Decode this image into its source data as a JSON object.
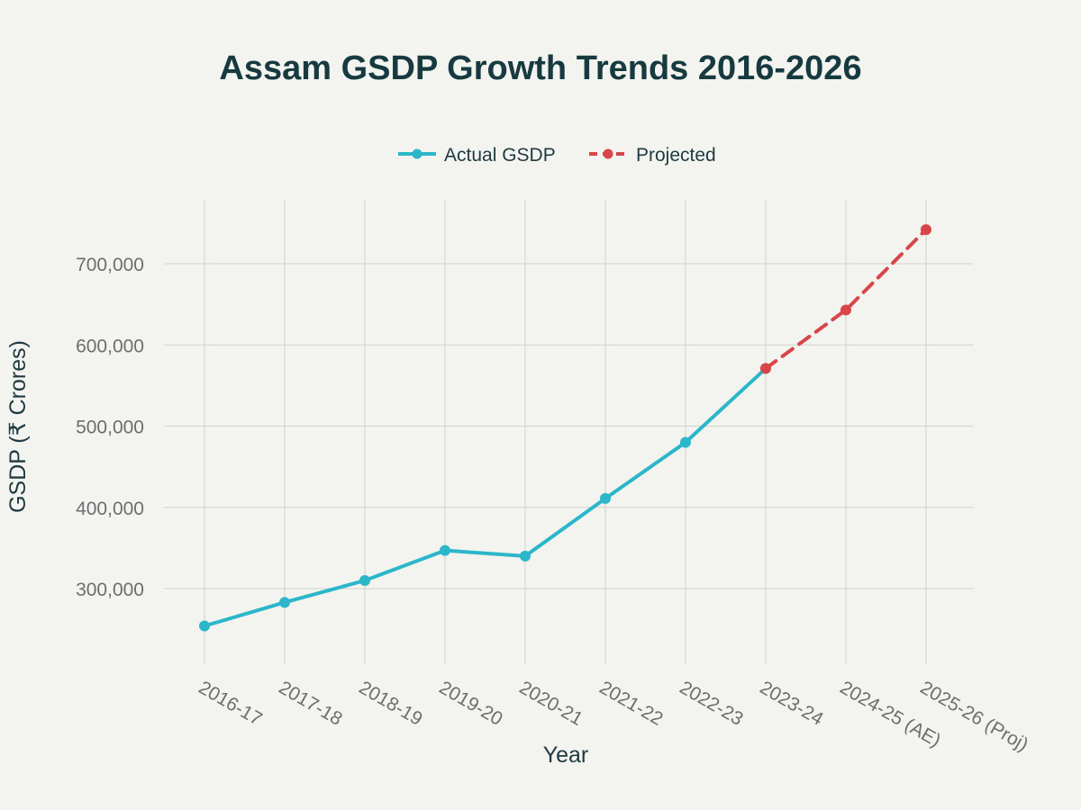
{
  "chart_data": {
    "type": "line",
    "title": "Assam GSDP Growth Trends 2016-2026",
    "xlabel": "Year",
    "ylabel": "GSDP (₹ Crores)",
    "categories": [
      "2016-17",
      "2017-18",
      "2018-19",
      "2019-20",
      "2020-21",
      "2021-22",
      "2022-23",
      "2023-24",
      "2024-25 (AE)",
      "2025-26 (Proj)"
    ],
    "ylim": [
      210000,
      760000
    ],
    "yticks": [
      300000,
      400000,
      500000,
      600000,
      700000
    ],
    "ytick_labels": [
      "300,000",
      "400,000",
      "500,000",
      "600,000",
      "700,000"
    ],
    "grid": true,
    "legend_position": "top-center",
    "series": [
      {
        "name": "Actual GSDP",
        "color": "#2bb7c9",
        "dash": "solid",
        "x": [
          "2016-17",
          "2017-18",
          "2018-19",
          "2019-20",
          "2020-21",
          "2021-22",
          "2022-23",
          "2023-24"
        ],
        "values": [
          254000,
          283000,
          310000,
          347000,
          340000,
          411000,
          480000,
          571000
        ]
      },
      {
        "name": "Projected",
        "color": "#d9464a",
        "dash": "dashed",
        "x": [
          "2023-24",
          "2024-25 (AE)",
          "2025-26 (Proj)"
        ],
        "values": [
          571000,
          643000,
          742000
        ]
      }
    ]
  }
}
